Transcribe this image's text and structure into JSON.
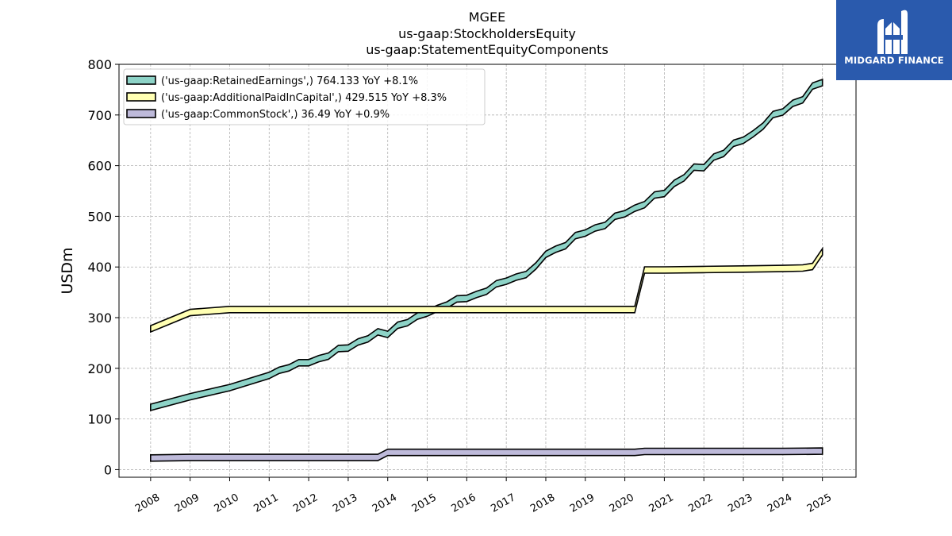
{
  "brand": {
    "name": "MIDGARD FINANCE",
    "logo_icon": "midgard-m-monogram-icon",
    "background": "#2a5aad"
  },
  "chart_data": {
    "type": "line",
    "title_lines": [
      "MGEE",
      "us-gaap:StockholdersEquity",
      "us-gaap:StatementEquityComponents"
    ],
    "xlabel": "",
    "ylabel": "USDm",
    "ylim": [
      -15,
      800
    ],
    "xlim": [
      2007.2,
      2025.85
    ],
    "yticks": [
      0,
      100,
      200,
      300,
      400,
      500,
      600,
      700,
      800
    ],
    "xticks": [
      2008,
      2009,
      2010,
      2011,
      2012,
      2013,
      2014,
      2015,
      2016,
      2017,
      2018,
      2019,
      2020,
      2021,
      2022,
      2023,
      2024,
      2025
    ],
    "grid": true,
    "legend_position": "top-left",
    "series": [
      {
        "name": "('us-gaap:RetainedEarnings',) 764.133 YoY +8.1%",
        "color": "#8dd3c7",
        "x": [
          2008.0,
          2009.0,
          2010.0,
          2011.0,
          2011.25,
          2011.5,
          2011.75,
          2012.0,
          2012.25,
          2012.5,
          2012.75,
          2013.0,
          2013.25,
          2013.5,
          2013.75,
          2014.0,
          2014.25,
          2014.5,
          2014.75,
          2015.0,
          2015.25,
          2015.5,
          2015.75,
          2016.0,
          2016.25,
          2016.5,
          2016.75,
          2017.0,
          2017.25,
          2017.5,
          2017.75,
          2018.0,
          2018.25,
          2018.5,
          2018.75,
          2019.0,
          2019.25,
          2019.5,
          2019.75,
          2020.0,
          2020.25,
          2020.5,
          2020.75,
          2021.0,
          2021.25,
          2021.5,
          2021.75,
          2022.0,
          2022.25,
          2022.5,
          2022.75,
          2023.0,
          2023.25,
          2023.5,
          2023.75,
          2024.0,
          2024.25,
          2024.5,
          2024.75,
          2025.0
        ],
        "values": [
          123,
          144,
          162,
          186,
          196,
          201,
          211,
          211,
          219,
          224,
          239,
          240,
          252,
          258,
          272,
          267,
          285,
          290,
          303,
          309,
          318,
          325,
          337,
          338,
          346,
          352,
          367,
          372,
          380,
          385,
          402,
          425,
          435,
          442,
          462,
          467,
          477,
          482,
          500,
          505,
          516,
          523,
          542,
          545,
          565,
          576,
          597,
          596,
          617,
          624,
          644,
          650,
          663,
          678,
          701,
          706,
          723,
          730,
          757,
          764
        ]
      },
      {
        "name": "('us-gaap:AdditionalPaidInCapital',) 429.515 YoY +8.3%",
        "color": "#ffffb3",
        "x": [
          2008.0,
          2009.0,
          2010.0,
          2011.0,
          2012.0,
          2013.0,
          2014.0,
          2015.0,
          2016.0,
          2017.0,
          2018.0,
          2019.0,
          2020.0,
          2020.25,
          2020.5,
          2021.0,
          2022.0,
          2023.0,
          2024.0,
          2024.5,
          2024.75,
          2025.0
        ],
        "values": [
          278,
          310,
          316,
          316,
          316,
          316,
          316,
          316,
          316,
          316,
          316,
          316,
          316,
          316,
          394,
          394,
          395,
          396,
          397,
          398,
          401,
          430
        ]
      },
      {
        "name": "('us-gaap:CommonStock',) 36.49 YoY +0.9%",
        "color": "#bebada",
        "x": [
          2008.0,
          2009.0,
          2010.0,
          2011.0,
          2012.0,
          2013.0,
          2013.75,
          2014.0,
          2015.0,
          2016.0,
          2017.0,
          2018.0,
          2019.0,
          2020.0,
          2020.25,
          2020.5,
          2021.0,
          2022.0,
          2023.0,
          2024.0,
          2025.0
        ],
        "values": [
          23,
          24,
          24,
          24,
          24,
          24,
          24,
          34,
          34,
          34,
          34,
          34,
          34,
          34,
          34,
          36,
          36,
          36,
          36,
          36,
          36.49
        ]
      }
    ]
  }
}
